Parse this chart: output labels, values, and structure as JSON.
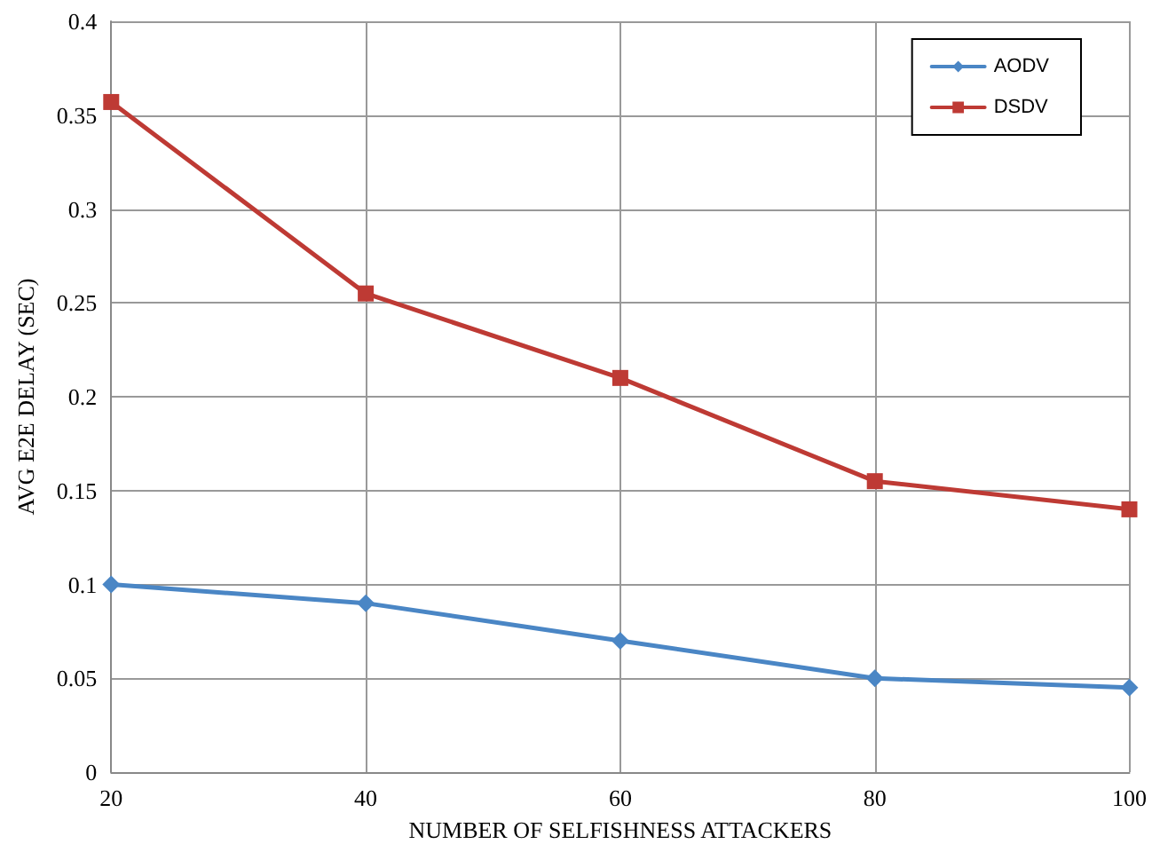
{
  "chart_data": {
    "type": "line",
    "xlabel": "NUMBER OF SELFISHNESS ATTACKERS",
    "ylabel": "AVG E2E DELAY (SEC)",
    "x": [
      20,
      40,
      60,
      80,
      100
    ],
    "series": [
      {
        "name": "AODV",
        "color": "#4a86c5",
        "marker": "diamond",
        "values": [
          0.1,
          0.09,
          0.07,
          0.05,
          0.045
        ]
      },
      {
        "name": "DSDV",
        "color": "#be3a34",
        "marker": "square",
        "values": [
          0.357,
          0.255,
          0.21,
          0.155,
          0.14
        ]
      }
    ],
    "xlim": [
      20,
      100
    ],
    "xticks": [
      20,
      40,
      60,
      80,
      100
    ],
    "ylim": [
      0,
      0.4
    ],
    "yticks": [
      0,
      0.05,
      0.1,
      0.15,
      0.2,
      0.25,
      0.3,
      0.35,
      0.4
    ],
    "grid": true,
    "legend": "top right",
    "line_style": "solid"
  }
}
